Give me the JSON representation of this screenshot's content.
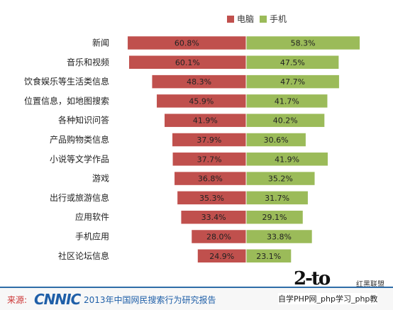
{
  "chart_data": {
    "type": "bar",
    "orientation": "diverging-horizontal",
    "categories": [
      "新闻",
      "音乐和视频",
      "饮食娱乐等生活类信息",
      "位置信息，如地图搜索",
      "各种知识问答",
      "产品购物类信息",
      "小说等文学作品",
      "游戏",
      "出行或旅游信息",
      "应用软件",
      "手机应用",
      "社区论坛信息"
    ],
    "series": [
      {
        "name": "电脑",
        "color": "#c0504d",
        "values": [
          60.8,
          60.1,
          48.3,
          45.9,
          41.9,
          37.9,
          37.7,
          36.8,
          35.3,
          33.4,
          28.0,
          24.9
        ],
        "labels": [
          "60.8%",
          "60.1%",
          "48.3%",
          "45.9%",
          "41.9%",
          "37.9%",
          "37.7%",
          "36.8%",
          "35.3%",
          "33.4%",
          "28.0%",
          "24.9%"
        ]
      },
      {
        "name": "手机",
        "color": "#9bbb59",
        "values": [
          58.3,
          47.5,
          47.7,
          41.7,
          40.2,
          30.6,
          41.9,
          35.2,
          31.7,
          29.1,
          33.8,
          23.1
        ],
        "labels": [
          "58.3%",
          "47.5%",
          "47.7%",
          "41.7%",
          "40.2%",
          "30.6%",
          "41.9%",
          "35.2%",
          "31.7%",
          "29.1%",
          "33.8%",
          "23.1%"
        ]
      }
    ],
    "unit": "%",
    "legend": "top-center",
    "grid": false
  },
  "footer": {
    "source_label": "来源:",
    "source_logo": "CNNIC",
    "source_text": "2013年中国网民搜索行为研究报告",
    "watermark_brand": "红黑联盟",
    "watermark_line": "自学PHP网_php学习_php教"
  }
}
